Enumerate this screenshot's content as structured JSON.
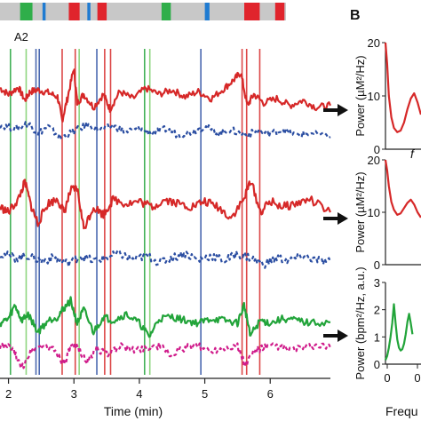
{
  "labels": {
    "panel_a2": "A2",
    "panel_b": "B"
  },
  "colors": {
    "red": "#d62828",
    "blue": "#2b4ea2",
    "green": "#22a43a",
    "light_green": "#7ccf6a",
    "magenta": "#d01c8b",
    "grey_bar": "#c8c8c8",
    "state_green": "#2fae4a",
    "state_blue": "#1f7bd1",
    "state_red": "#e0242c"
  },
  "state_bar": [
    {
      "start": 0.26,
      "end": 0.42,
      "state": "green"
    },
    {
      "start": 0.55,
      "end": 0.59,
      "state": "blue"
    },
    {
      "start": 0.89,
      "end": 1.03,
      "state": "red"
    },
    {
      "start": 1.13,
      "end": 1.17,
      "state": "blue"
    },
    {
      "start": 1.26,
      "end": 1.38,
      "state": "red"
    },
    {
      "start": 2.09,
      "end": 2.21,
      "state": "green"
    },
    {
      "start": 2.65,
      "end": 2.71,
      "state": "blue"
    },
    {
      "start": 3.16,
      "end": 3.36,
      "state": "red"
    },
    {
      "start": 3.56,
      "end": 3.68,
      "state": "red"
    }
  ],
  "chart_data": [
    {
      "type": "line",
      "panel": "A",
      "xlabel": "Time (min)",
      "x_ticks": [
        2,
        3,
        4,
        5,
        6
      ],
      "xlim": [
        1.87,
        6.92
      ],
      "event_markers": [
        {
          "t": 2.03,
          "color": "green"
        },
        {
          "t": 2.27,
          "color": "light_green"
        },
        {
          "t": 2.42,
          "color": "blue"
        },
        {
          "t": 2.47,
          "color": "blue"
        },
        {
          "t": 2.82,
          "color": "red"
        },
        {
          "t": 3.02,
          "color": "red"
        },
        {
          "t": 3.08,
          "color": "light_green"
        },
        {
          "t": 3.35,
          "color": "blue"
        },
        {
          "t": 3.47,
          "color": "red"
        },
        {
          "t": 3.56,
          "color": "red"
        },
        {
          "t": 4.08,
          "color": "green"
        },
        {
          "t": 4.16,
          "color": "light_green"
        },
        {
          "t": 4.94,
          "color": "blue"
        },
        {
          "t": 5.57,
          "color": "red"
        },
        {
          "t": 5.64,
          "color": "red"
        },
        {
          "t": 5.84,
          "color": "red"
        }
      ],
      "traces": [
        {
          "row": 1,
          "color": "red",
          "style": "solid",
          "times": [
            1.87,
            2.0,
            2.15,
            2.25,
            2.33,
            2.45,
            2.6,
            2.75,
            2.82,
            2.9,
            3.0,
            3.05,
            3.15,
            3.3,
            3.45,
            3.55,
            3.7,
            3.9,
            4.1,
            4.3,
            4.5,
            4.7,
            4.9,
            5.1,
            5.3,
            5.45,
            5.55,
            5.65,
            5.75,
            5.9,
            6.1,
            6.3,
            6.5,
            6.7,
            6.92
          ],
          "values": [
            0.62,
            0.55,
            0.63,
            0.48,
            0.58,
            0.6,
            0.57,
            0.52,
            0.25,
            0.5,
            0.85,
            0.45,
            0.55,
            0.4,
            0.55,
            0.38,
            0.58,
            0.5,
            0.62,
            0.55,
            0.6,
            0.52,
            0.58,
            0.5,
            0.62,
            0.72,
            0.8,
            0.42,
            0.55,
            0.45,
            0.5,
            0.42,
            0.48,
            0.4,
            0.42
          ]
        },
        {
          "row": 1,
          "color": "blue",
          "style": "dashed",
          "times": [
            1.87,
            2.1,
            2.3,
            2.45,
            2.6,
            2.8,
            3.0,
            3.2,
            3.4,
            3.6,
            3.8,
            4.0,
            4.2,
            4.4,
            4.6,
            4.8,
            5.0,
            5.2,
            5.4,
            5.6,
            5.8,
            6.0,
            6.2,
            6.4,
            6.6,
            6.92
          ],
          "values": [
            0.2,
            0.15,
            0.22,
            0.1,
            0.18,
            0.05,
            0.12,
            0.2,
            0.14,
            0.18,
            0.12,
            0.16,
            0.1,
            0.15,
            0.08,
            0.12,
            0.18,
            0.1,
            0.14,
            0.08,
            0.12,
            0.1,
            0.14,
            0.08,
            0.1,
            0.06
          ]
        },
        {
          "row": 2,
          "color": "red",
          "style": "solid",
          "times": [
            1.87,
            2.0,
            2.15,
            2.25,
            2.35,
            2.45,
            2.6,
            2.75,
            2.85,
            2.95,
            3.05,
            3.15,
            3.3,
            3.45,
            3.6,
            3.8,
            4.0,
            4.2,
            4.4,
            4.6,
            4.8,
            5.0,
            5.2,
            5.4,
            5.6,
            5.7,
            5.85,
            6.0,
            6.2,
            6.4,
            6.6,
            6.92
          ],
          "values": [
            0.55,
            0.5,
            0.62,
            0.78,
            0.55,
            0.4,
            0.58,
            0.62,
            0.5,
            0.7,
            0.72,
            0.35,
            0.55,
            0.48,
            0.62,
            0.58,
            0.6,
            0.55,
            0.62,
            0.58,
            0.55,
            0.6,
            0.55,
            0.45,
            0.62,
            0.8,
            0.5,
            0.6,
            0.55,
            0.58,
            0.62,
            0.5
          ]
        },
        {
          "row": 2,
          "color": "blue",
          "style": "dashed",
          "times": [
            1.87,
            2.1,
            2.3,
            2.5,
            2.7,
            2.9,
            3.1,
            3.3,
            3.5,
            3.7,
            3.9,
            4.1,
            4.3,
            4.5,
            4.7,
            4.9,
            5.1,
            5.3,
            5.5,
            5.7,
            5.9,
            6.1,
            6.3,
            6.5,
            6.7,
            6.92
          ],
          "values": [
            0.12,
            0.08,
            0.1,
            0.05,
            0.08,
            0.03,
            0.1,
            0.05,
            0.08,
            0.12,
            0.06,
            0.1,
            0.04,
            0.08,
            0.12,
            0.06,
            0.1,
            0.05,
            0.12,
            0.08,
            0.02,
            0.08,
            0.05,
            0.1,
            0.06,
            0.04
          ]
        },
        {
          "row": 3,
          "color": "green",
          "style": "solid",
          "times": [
            1.87,
            2.0,
            2.1,
            2.2,
            2.3,
            2.45,
            2.6,
            2.75,
            2.85,
            2.95,
            3.05,
            3.15,
            3.3,
            3.45,
            3.6,
            3.8,
            4.0,
            4.15,
            4.3,
            4.5,
            4.7,
            4.9,
            5.1,
            5.3,
            5.5,
            5.6,
            5.7,
            5.85,
            6.0,
            6.2,
            6.4,
            6.6,
            6.92
          ],
          "values": [
            0.55,
            0.6,
            0.75,
            0.58,
            0.65,
            0.45,
            0.58,
            0.62,
            0.72,
            0.8,
            0.55,
            0.7,
            0.45,
            0.62,
            0.58,
            0.65,
            0.55,
            0.4,
            0.6,
            0.62,
            0.58,
            0.55,
            0.6,
            0.58,
            0.55,
            0.75,
            0.42,
            0.58,
            0.55,
            0.6,
            0.58,
            0.55,
            0.56
          ]
        },
        {
          "row": 3,
          "color": "magenta",
          "style": "dashed",
          "times": [
            1.87,
            2.05,
            2.2,
            2.35,
            2.5,
            2.7,
            2.85,
            2.95,
            3.05,
            3.2,
            3.35,
            3.5,
            3.7,
            3.9,
            4.1,
            4.3,
            4.5,
            4.7,
            4.9,
            5.1,
            5.3,
            5.5,
            5.62,
            5.75,
            5.9,
            6.1,
            6.3,
            6.5,
            6.7,
            6.92
          ],
          "values": [
            0.3,
            0.28,
            0.05,
            0.25,
            0.3,
            0.26,
            0.1,
            0.28,
            0.3,
            0.12,
            0.28,
            0.2,
            0.3,
            0.25,
            0.28,
            0.3,
            0.2,
            0.28,
            0.3,
            0.25,
            0.28,
            0.3,
            0.08,
            0.25,
            0.28,
            0.3,
            0.26,
            0.28,
            0.3,
            0.28
          ]
        }
      ]
    },
    {
      "type": "line",
      "panel": "B",
      "ylabel": "Power (µM²/Hz)",
      "xlabel": "Frequ",
      "annotation": "f",
      "ylim": [
        0,
        20
      ],
      "y_ticks": [
        0,
        10,
        20
      ],
      "series": [
        {
          "color": "red",
          "x": [
            0.0,
            0.01,
            0.02,
            0.035,
            0.05,
            0.07,
            0.09,
            0.11,
            0.13,
            0.15,
            0.17,
            0.19,
            0.21
          ],
          "y": [
            20,
            16,
            10,
            6,
            4,
            3.2,
            3.5,
            5,
            7.5,
            9.5,
            10.5,
            8.8,
            6.5
          ]
        }
      ]
    },
    {
      "type": "line",
      "panel": "B",
      "ylabel": "Power (µM²/Hz)",
      "ylim": [
        0,
        20
      ],
      "y_ticks": [
        0,
        10,
        20
      ],
      "series": [
        {
          "color": "red",
          "x": [
            0.0,
            0.01,
            0.02,
            0.035,
            0.05,
            0.07,
            0.09,
            0.11,
            0.13,
            0.15,
            0.17,
            0.19,
            0.21
          ],
          "y": [
            20,
            18,
            15,
            12,
            10.5,
            9.5,
            9.8,
            10.8,
            11.8,
            12.4,
            11.5,
            10,
            9
          ]
        }
      ]
    },
    {
      "type": "line",
      "panel": "B",
      "ylabel": "Power (bpm²/Hz, a.u.)",
      "xlabel": "Frequ",
      "ylim": [
        0,
        3
      ],
      "y_ticks": [
        0,
        1,
        2,
        3
      ],
      "x_ticks": [
        "0",
        "0"
      ],
      "series": [
        {
          "color": "green",
          "x": [
            0.0,
            0.01,
            0.02,
            0.03,
            0.04,
            0.05,
            0.06,
            0.07,
            0.08,
            0.09,
            0.1,
            0.11,
            0.12,
            0.13,
            0.14,
            0.15,
            0.16
          ],
          "y": [
            0.15,
            0.3,
            0.6,
            1.0,
            1.5,
            2.2,
            1.5,
            0.9,
            0.6,
            0.5,
            0.55,
            0.75,
            1.1,
            1.55,
            1.85,
            1.5,
            1.1
          ]
        }
      ]
    }
  ]
}
